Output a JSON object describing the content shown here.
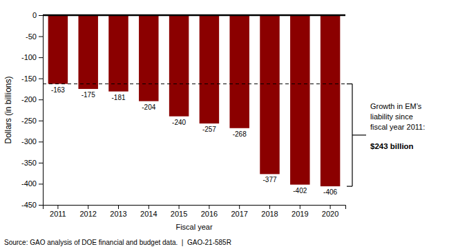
{
  "chart_data": {
    "type": "bar",
    "categories": [
      "2011",
      "2012",
      "2013",
      "2014",
      "2015",
      "2016",
      "2017",
      "2018",
      "2019",
      "2020"
    ],
    "values": [
      -163,
      -175,
      -181,
      -204,
      -240,
      -257,
      -268,
      -377,
      -402,
      -406
    ],
    "color": "#8B0000",
    "ylim": [
      -450,
      0
    ],
    "yticks": [
      0,
      -50,
      -100,
      -150,
      -200,
      -250,
      -300,
      -350,
      -400,
      -450
    ],
    "y_label": "Dollars (in billions)",
    "x_label": "Fiscal year",
    "data_labels": true,
    "reference_line": -163,
    "annotations": [
      "Growth in EM’s",
      "liability since",
      "fiscal year 2011:",
      "$243 billion"
    ],
    "source": "Source: GAO analysis of DOE financial and budget data.  |  GAO-21-585R"
  }
}
